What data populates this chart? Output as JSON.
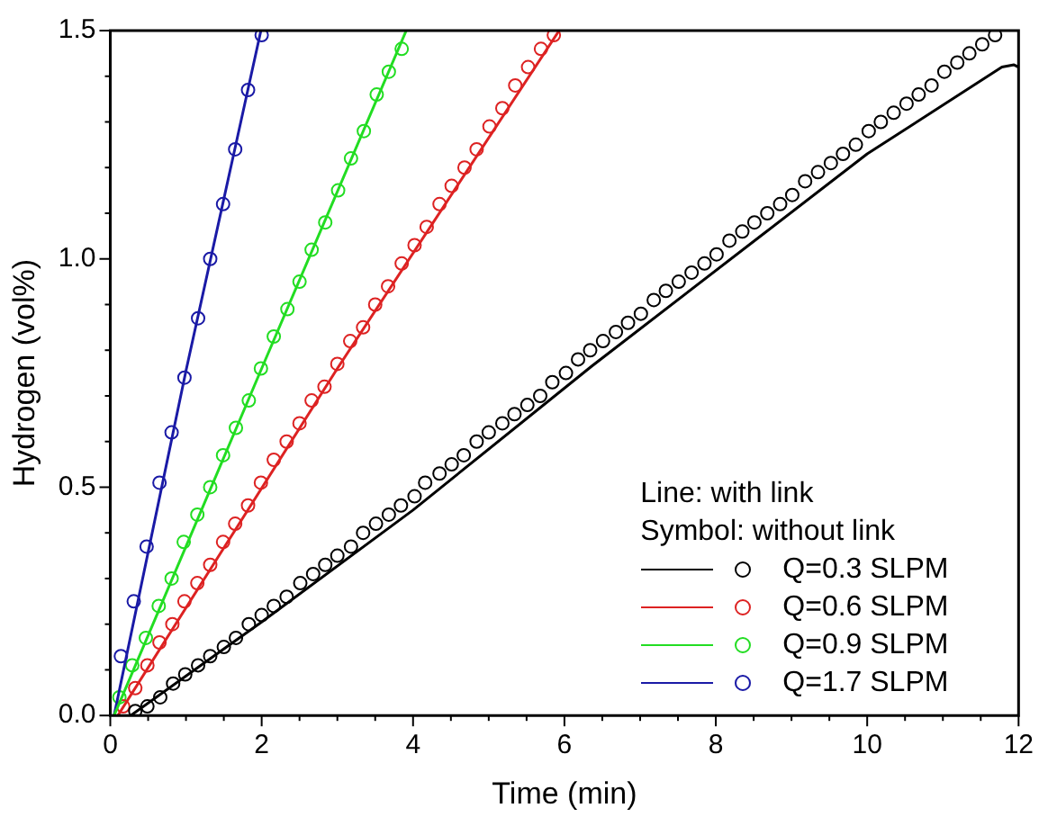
{
  "chart_data": {
    "type": "line",
    "xlabel": "Time (min)",
    "ylabel": "Hydrogen (vol%)",
    "xlim": [
      0,
      12
    ],
    "ylim": [
      0,
      1.5
    ],
    "xticks": [
      0,
      {
        "value": 0.5,
        "label": null
      },
      {
        "value": 1,
        "label": null
      },
      {
        "value": 1.5,
        "label": null
      },
      2,
      {
        "value": 2.5,
        "label": null
      },
      {
        "value": 3,
        "label": null
      },
      {
        "value": 3.5,
        "label": null
      },
      4,
      {
        "value": 4.5,
        "label": null
      },
      {
        "value": 5,
        "label": null
      },
      {
        "value": 5.5,
        "label": null
      },
      6,
      {
        "value": 6.5,
        "label": null
      },
      {
        "value": 7,
        "label": null
      },
      {
        "value": 7.5,
        "label": null
      },
      8,
      {
        "value": 8.5,
        "label": null
      },
      {
        "value": 9,
        "label": null
      },
      {
        "value": 9.5,
        "label": null
      },
      10,
      {
        "value": 10.5,
        "label": null
      },
      {
        "value": 11,
        "label": null
      },
      {
        "value": 11.5,
        "label": null
      },
      12
    ],
    "yticks": [
      {
        "value": 0,
        "label": "0.0"
      },
      {
        "value": 0.1,
        "label": null
      },
      {
        "value": 0.2,
        "label": null
      },
      {
        "value": 0.3,
        "label": null
      },
      {
        "value": 0.4,
        "label": null
      },
      {
        "value": 0.5,
        "label": "0.5"
      },
      {
        "value": 0.6,
        "label": null
      },
      {
        "value": 0.7,
        "label": null
      },
      {
        "value": 0.8,
        "label": null
      },
      {
        "value": 0.9,
        "label": null
      },
      {
        "value": 1.0,
        "label": "1.0"
      },
      {
        "value": 1.1,
        "label": null
      },
      {
        "value": 1.2,
        "label": null
      },
      {
        "value": 1.3,
        "label": null
      },
      {
        "value": 1.4,
        "label": null
      },
      {
        "value": 1.5,
        "label": "1.5"
      }
    ],
    "grid": false,
    "legend": "bottom right",
    "annotations": [
      "Line: with link",
      "Symbol: without link"
    ],
    "series": [
      {
        "type": "line",
        "marker": "none",
        "name": "Q=0.3 SLPM",
        "color": "#000000",
        "x": [
          0.27,
          2,
          4,
          6.36,
          8.67,
          10,
          11.78,
          11.94,
          12
        ],
        "values": [
          0,
          0.205,
          0.45,
          0.765,
          1.06,
          1.23,
          1.42,
          1.425,
          1.42
        ]
      },
      {
        "type": "line",
        "marker": "none",
        "name": "Q=0.6 SLPM",
        "color": "#dd2222",
        "x": [
          0.1,
          3,
          5.93
        ],
        "values": [
          0,
          0.76,
          1.5
        ]
      },
      {
        "type": "line",
        "marker": "none",
        "name": "Q=0.9 SLPM",
        "color": "#22dd22",
        "x": [
          0.05,
          2,
          3.91
        ],
        "values": [
          0,
          0.76,
          1.5
        ]
      },
      {
        "type": "line",
        "marker": "none",
        "name": "Q=1.7 SLPM",
        "color": "#1a1aa6",
        "x": [
          0.05,
          1,
          1.99
        ],
        "values": [
          0,
          0.755,
          1.5
        ]
      },
      {
        "type": "scatter",
        "marker": "circle",
        "color": "#000000",
        "x": [
          0.33,
          0.49,
          0.66,
          0.83,
          0.99,
          1.16,
          1.32,
          1.5,
          1.66,
          1.83,
          2.0,
          2.16,
          2.33,
          2.51,
          2.68,
          2.84,
          3.0,
          3.18,
          3.34,
          3.51,
          3.68,
          3.84,
          4.02,
          4.16,
          4.35,
          4.51,
          4.67,
          4.84,
          5.0,
          5.18,
          5.34,
          5.51,
          5.68,
          5.84,
          6.02,
          6.18,
          6.34,
          6.51,
          6.68,
          6.84,
          7.01,
          7.18,
          7.34,
          7.51,
          7.68,
          7.85,
          8.01,
          8.18,
          8.35,
          8.51,
          8.68,
          8.85,
          9.01,
          9.18,
          9.35,
          9.52,
          9.68,
          9.85,
          10.02,
          10.18,
          10.35,
          10.52,
          10.68,
          10.85,
          11.02,
          11.19,
          11.35,
          11.52,
          11.69
        ],
        "values": [
          0.01,
          0.02,
          0.04,
          0.07,
          0.09,
          0.11,
          0.13,
          0.15,
          0.17,
          0.2,
          0.22,
          0.24,
          0.26,
          0.29,
          0.31,
          0.33,
          0.35,
          0.37,
          0.4,
          0.42,
          0.44,
          0.46,
          0.48,
          0.51,
          0.53,
          0.55,
          0.57,
          0.6,
          0.62,
          0.64,
          0.66,
          0.68,
          0.7,
          0.73,
          0.75,
          0.78,
          0.8,
          0.82,
          0.84,
          0.86,
          0.88,
          0.91,
          0.93,
          0.95,
          0.97,
          0.99,
          1.01,
          1.04,
          1.06,
          1.08,
          1.1,
          1.12,
          1.14,
          1.17,
          1.19,
          1.21,
          1.23,
          1.25,
          1.28,
          1.3,
          1.32,
          1.34,
          1.36,
          1.38,
          1.41,
          1.43,
          1.45,
          1.47,
          1.49
        ]
      },
      {
        "type": "scatter",
        "marker": "circle",
        "color": "#dd2222",
        "x": [
          0.17,
          0.33,
          0.49,
          0.65,
          0.82,
          0.98,
          1.15,
          1.32,
          1.49,
          1.65,
          1.82,
          1.99,
          2.16,
          2.33,
          2.5,
          2.66,
          2.83,
          3.0,
          3.17,
          3.34,
          3.5,
          3.67,
          3.85,
          4.02,
          4.18,
          4.35,
          4.51,
          4.68,
          4.84,
          5.01,
          5.18,
          5.35,
          5.52,
          5.69,
          5.86
        ],
        "values": [
          0.02,
          0.06,
          0.11,
          0.16,
          0.2,
          0.25,
          0.29,
          0.33,
          0.38,
          0.42,
          0.46,
          0.51,
          0.56,
          0.6,
          0.64,
          0.69,
          0.72,
          0.77,
          0.82,
          0.85,
          0.9,
          0.94,
          0.99,
          1.03,
          1.07,
          1.12,
          1.16,
          1.2,
          1.24,
          1.29,
          1.33,
          1.38,
          1.42,
          1.46,
          1.49
        ]
      },
      {
        "type": "scatter",
        "marker": "circle",
        "color": "#22dd22",
        "x": [
          0.12,
          0.29,
          0.47,
          0.64,
          0.81,
          0.97,
          1.15,
          1.32,
          1.49,
          1.66,
          1.83,
          1.99,
          2.16,
          2.34,
          2.5,
          2.66,
          2.84,
          3.01,
          3.18,
          3.35,
          3.52,
          3.68,
          3.85
        ],
        "values": [
          0.04,
          0.11,
          0.17,
          0.24,
          0.3,
          0.38,
          0.44,
          0.5,
          0.57,
          0.63,
          0.69,
          0.76,
          0.83,
          0.89,
          0.95,
          1.02,
          1.08,
          1.15,
          1.22,
          1.28,
          1.36,
          1.41,
          1.46
        ]
      },
      {
        "type": "scatter",
        "marker": "circle",
        "color": "#1a1aa6",
        "x": [
          0.14,
          0.31,
          0.48,
          0.65,
          0.81,
          0.98,
          1.16,
          1.32,
          1.49,
          1.65,
          1.82,
          2.0
        ],
        "values": [
          0.13,
          0.25,
          0.37,
          0.51,
          0.62,
          0.74,
          0.87,
          1.0,
          1.12,
          1.24,
          1.37,
          1.49
        ]
      }
    ]
  }
}
